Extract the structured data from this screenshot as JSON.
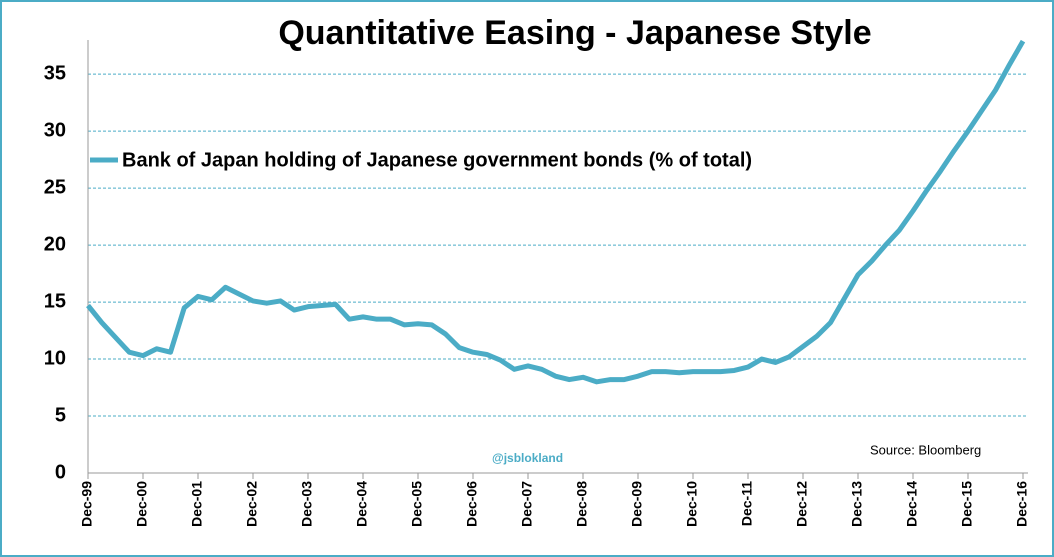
{
  "chart_data": {
    "type": "line",
    "title": "Quantitative Easing - Japanese Style",
    "source": "Source: Bloomberg",
    "watermark": "@jsblokland",
    "categories": [
      "Dec-99",
      null,
      null,
      null,
      "Dec-00",
      null,
      null,
      null,
      "Dec-01",
      null,
      null,
      null,
      "Dec-02",
      null,
      null,
      null,
      "Dec-03",
      null,
      null,
      null,
      "Dec-04",
      null,
      null,
      null,
      "Dec-05",
      null,
      null,
      null,
      "Dec-06",
      null,
      null,
      null,
      "Dec-07",
      null,
      null,
      null,
      "Dec-08",
      null,
      null,
      null,
      "Dec-09",
      null,
      null,
      null,
      "Dec-10",
      null,
      null,
      null,
      "Dec-11",
      null,
      null,
      null,
      "Dec-12",
      null,
      null,
      null,
      "Dec-13",
      null,
      null,
      null,
      "Dec-14",
      null,
      null,
      null,
      "Dec-15",
      null,
      null,
      null,
      "Dec-16"
    ],
    "series": [
      {
        "name": "Bank of Japan holding of Japanese government bonds (% of total)",
        "color": "#4bacc6",
        "values": [
          14.7,
          13.2,
          11.9,
          10.6,
          10.3,
          10.9,
          10.6,
          14.5,
          15.5,
          15.2,
          16.3,
          15.7,
          15.1,
          14.9,
          15.1,
          14.3,
          14.6,
          14.7,
          14.8,
          13.5,
          13.7,
          13.5,
          13.5,
          13.0,
          13.1,
          13.0,
          12.2,
          11.0,
          10.6,
          10.4,
          9.9,
          9.1,
          9.4,
          9.1,
          8.5,
          8.2,
          8.4,
          8.0,
          8.2,
          8.2,
          8.5,
          8.9,
          8.9,
          8.8,
          8.9,
          8.9,
          8.9,
          9.0,
          9.3,
          10.0,
          9.7,
          10.2,
          11.1,
          12.0,
          13.2,
          15.3,
          17.4,
          18.6,
          20.0,
          21.3,
          23.0,
          24.8,
          26.5,
          28.3,
          30.0,
          31.8,
          33.6,
          35.8,
          37.9
        ]
      }
    ],
    "ylim": [
      0,
      38
    ],
    "yticks": [
      0,
      5,
      10,
      15,
      20,
      25,
      30,
      35
    ],
    "grid": true
  }
}
